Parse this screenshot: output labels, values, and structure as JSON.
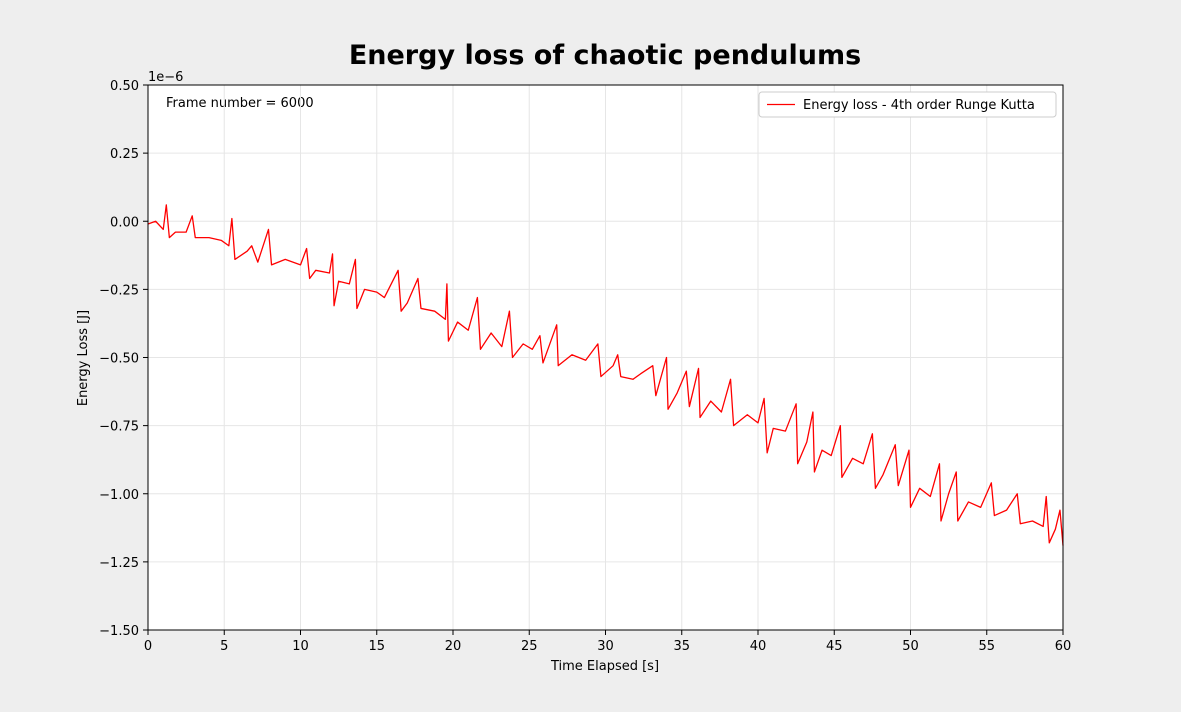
{
  "chart_data": {
    "type": "line",
    "title": "Energy loss of chaotic pendulums",
    "xlabel": "Time Elapsed [s]",
    "ylabel": "Energy Loss [J]",
    "y_offset_label": "1e−6",
    "annotation": "Frame number = 6000",
    "legend": "upper right",
    "grid": true,
    "xlim": [
      0,
      60
    ],
    "xticks": [
      0,
      5,
      10,
      15,
      20,
      25,
      30,
      35,
      40,
      45,
      50,
      55,
      60
    ],
    "ylim": [
      -1.5,
      0.5
    ],
    "yticks": [
      {
        "value": -1.5,
        "label": "−1.50"
      },
      {
        "value": -1.25,
        "label": "−1.25"
      },
      {
        "value": -1.0,
        "label": "−1.00"
      },
      {
        "value": -0.75,
        "label": "−0.75"
      },
      {
        "value": -0.5,
        "label": "−0.50"
      },
      {
        "value": -0.25,
        "label": "−0.25"
      },
      {
        "value": 0,
        "label": "0.00"
      },
      {
        "value": 0.25,
        "label": "0.25"
      },
      {
        "value": 0.5,
        "label": "0.50"
      }
    ],
    "x": [
      0,
      0.5,
      1.0,
      1.2,
      1.4,
      1.8,
      2.5,
      2.9,
      3.1,
      4.0,
      4.8,
      5.3,
      5.5,
      5.7,
      6.5,
      6.8,
      7.2,
      7.9,
      8.1,
      9.0,
      10.0,
      10.4,
      10.6,
      11.0,
      11.9,
      12.1,
      12.2,
      12.5,
      13.2,
      13.6,
      13.7,
      14.2,
      15.0,
      15.5,
      16.4,
      16.6,
      17.0,
      17.7,
      17.9,
      18.8,
      19.5,
      19.6,
      19.7,
      20.3,
      21.0,
      21.6,
      21.8,
      22.5,
      23.2,
      23.7,
      23.9,
      24.6,
      25.2,
      25.7,
      25.9,
      26.8,
      26.9,
      27.8,
      28.7,
      29.5,
      29.7,
      30.5,
      30.8,
      31.0,
      31.8,
      32.3,
      33.1,
      33.3,
      34.0,
      34.1,
      34.7,
      35.3,
      35.5,
      36.1,
      36.2,
      36.9,
      37.6,
      38.2,
      38.4,
      39.3,
      40.0,
      40.4,
      40.6,
      41.0,
      41.8,
      42.5,
      42.6,
      43.2,
      43.6,
      43.7,
      44.2,
      44.8,
      45.4,
      45.5,
      46.2,
      46.9,
      47.5,
      47.7,
      48.2,
      49.0,
      49.2,
      49.9,
      50.0,
      50.6,
      51.3,
      51.9,
      52.0,
      52.5,
      53.0,
      53.1,
      53.8,
      54.6,
      55.3,
      55.5,
      56.3,
      57.0,
      57.2,
      58.0,
      58.7,
      58.9,
      59.1,
      59.5,
      59.8,
      60.0
    ],
    "series": [
      {
        "name": "Energy loss - 4th order Runge Kutta",
        "color": "#ff0000",
        "values": [
          -0.01,
          0.0,
          -0.03,
          0.06,
          -0.06,
          -0.04,
          -0.04,
          0.02,
          -0.06,
          -0.06,
          -0.07,
          -0.09,
          0.01,
          -0.14,
          -0.11,
          -0.09,
          -0.15,
          -0.03,
          -0.16,
          -0.14,
          -0.16,
          -0.1,
          -0.21,
          -0.18,
          -0.19,
          -0.12,
          -0.31,
          -0.22,
          -0.23,
          -0.14,
          -0.32,
          -0.25,
          -0.26,
          -0.28,
          -0.18,
          -0.33,
          -0.3,
          -0.21,
          -0.32,
          -0.33,
          -0.36,
          -0.23,
          -0.44,
          -0.37,
          -0.4,
          -0.28,
          -0.47,
          -0.41,
          -0.46,
          -0.33,
          -0.5,
          -0.45,
          -0.47,
          -0.42,
          -0.52,
          -0.38,
          -0.53,
          -0.49,
          -0.51,
          -0.45,
          -0.57,
          -0.53,
          -0.49,
          -0.57,
          -0.58,
          -0.56,
          -0.53,
          -0.64,
          -0.5,
          -0.69,
          -0.63,
          -0.55,
          -0.68,
          -0.54,
          -0.72,
          -0.66,
          -0.7,
          -0.58,
          -0.75,
          -0.71,
          -0.74,
          -0.65,
          -0.85,
          -0.76,
          -0.77,
          -0.67,
          -0.89,
          -0.81,
          -0.7,
          -0.92,
          -0.84,
          -0.86,
          -0.75,
          -0.94,
          -0.87,
          -0.89,
          -0.78,
          -0.98,
          -0.93,
          -0.82,
          -0.97,
          -0.84,
          -1.05,
          -0.98,
          -1.01,
          -0.89,
          -1.1,
          -1.0,
          -0.92,
          -1.1,
          -1.03,
          -1.05,
          -0.96,
          -1.08,
          -1.06,
          -1.0,
          -1.11,
          -1.1,
          -1.12,
          -1.01,
          -1.18,
          -1.13,
          -1.06,
          -1.19
        ]
      }
    ]
  }
}
